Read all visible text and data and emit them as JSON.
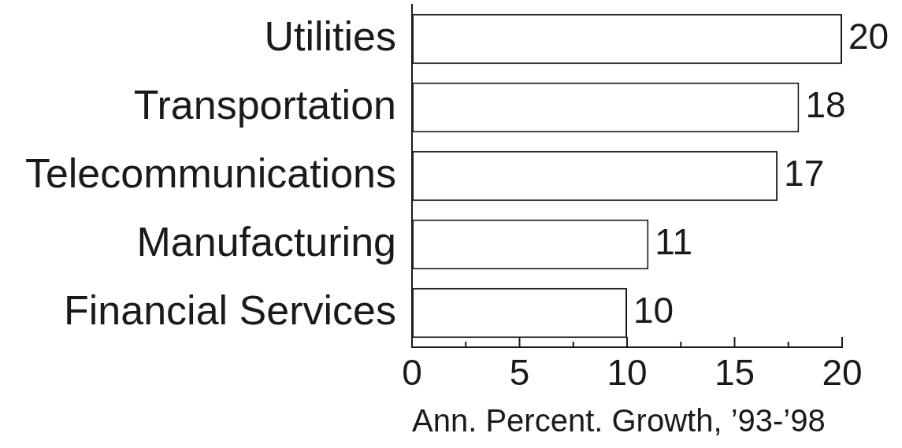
{
  "chart_data": {
    "type": "bar",
    "orientation": "horizontal",
    "categories": [
      "Utilities",
      "Transportation",
      "Telecommunications",
      "Manufacturing",
      "Financial Services"
    ],
    "values": [
      20,
      18,
      17,
      11,
      10
    ],
    "color": "#ffffff",
    "xlabel": "Ann. Percent. Growth, ’93-’98",
    "xlim": [
      0,
      20
    ],
    "xticks": [
      0,
      {
        "value": 2.5,
        "label": null
      },
      5,
      {
        "value": 7.5,
        "label": null
      },
      10,
      {
        "value": 12.5,
        "label": null
      },
      15,
      {
        "value": 17.5,
        "label": null
      },
      20
    ],
    "data_labels": true
  }
}
